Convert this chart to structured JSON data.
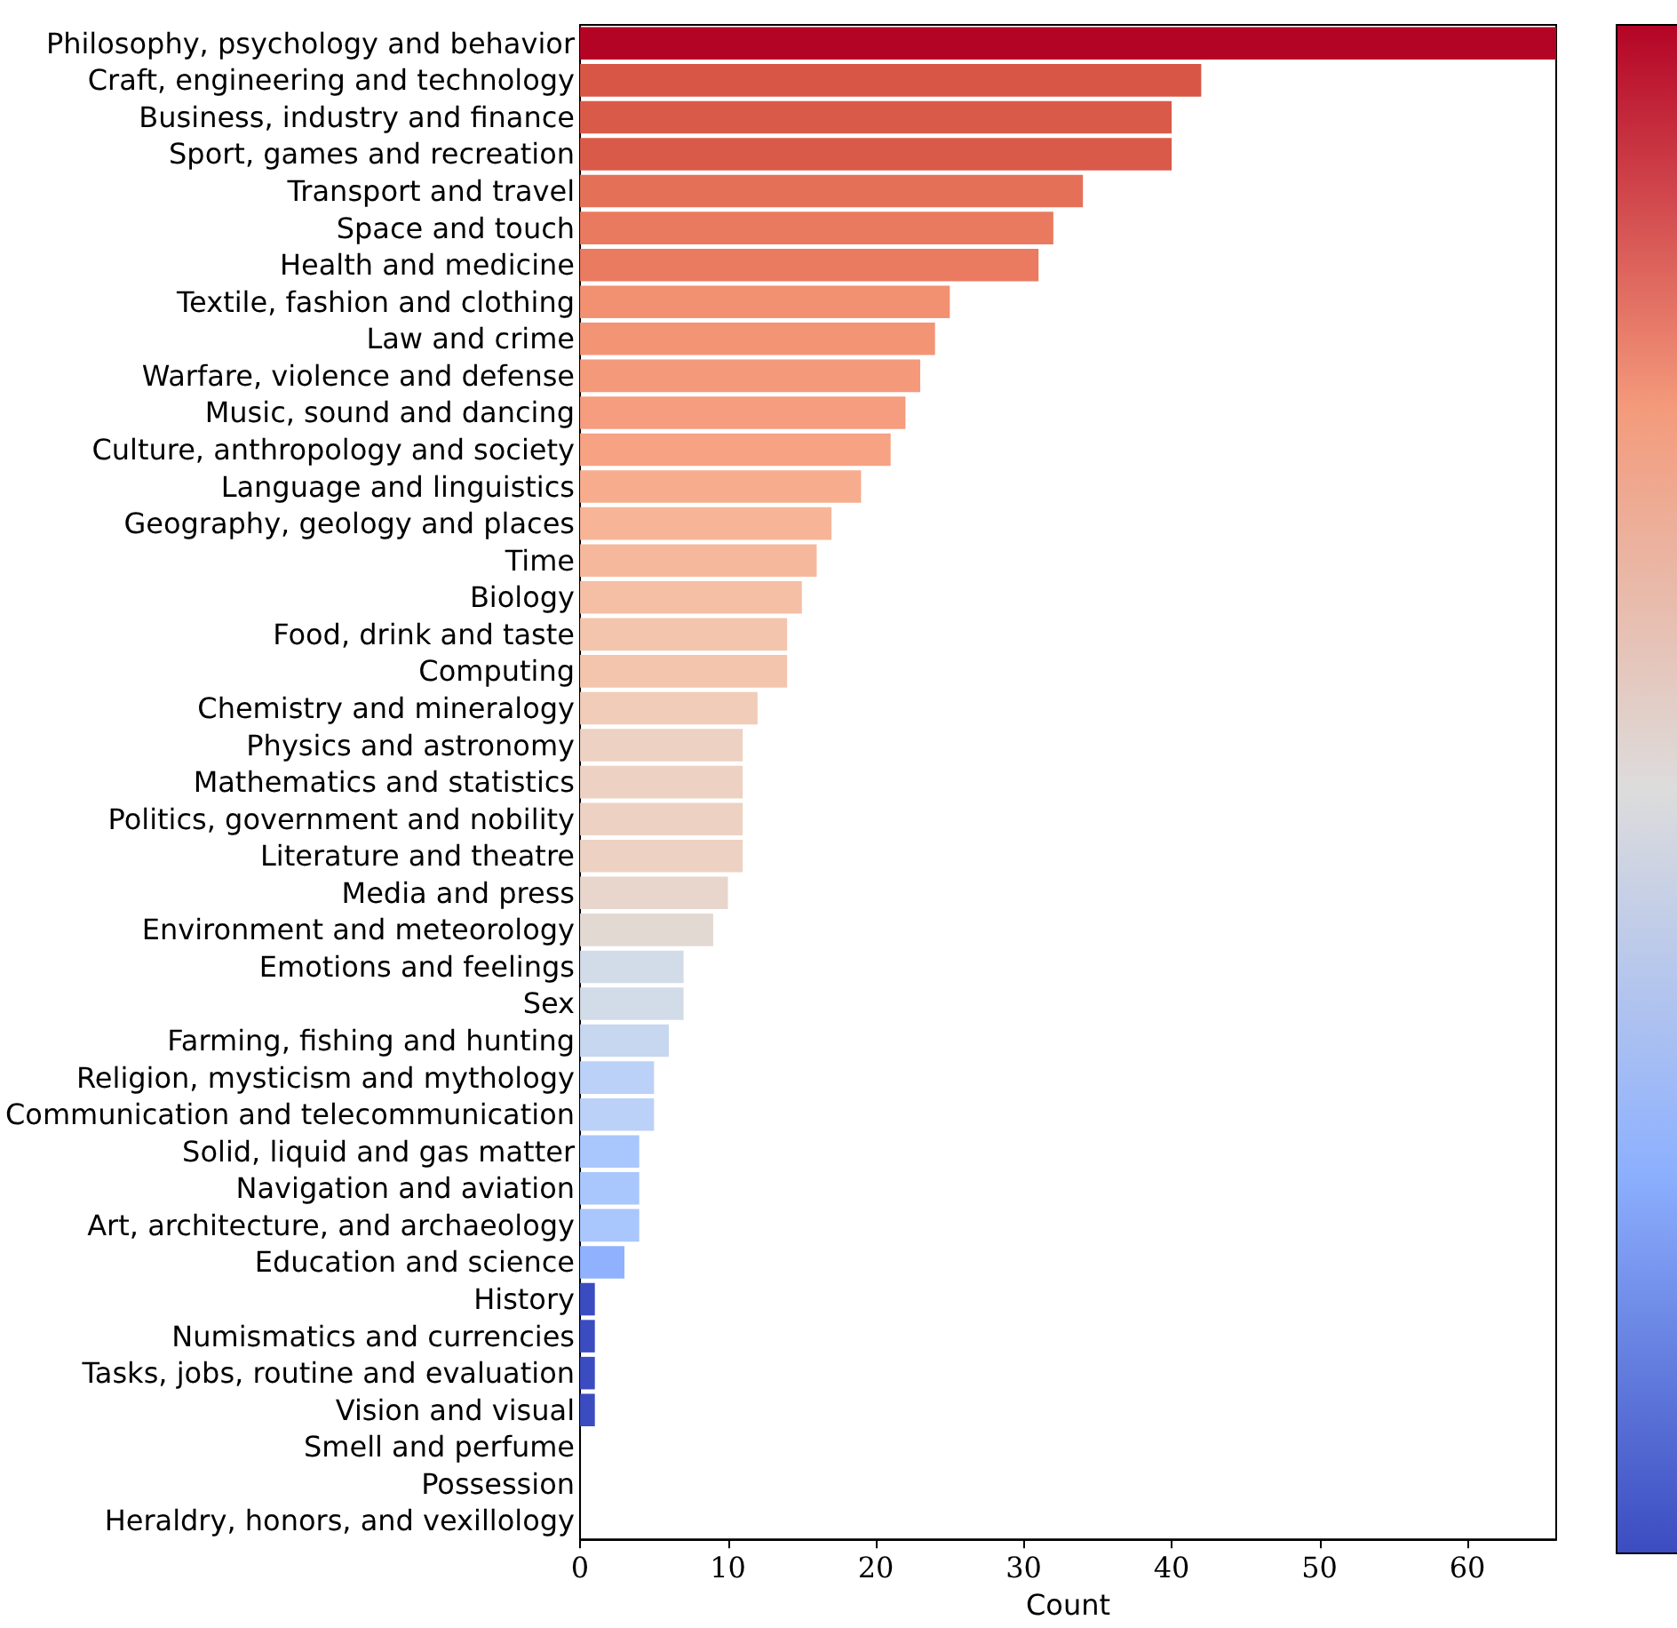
{
  "chart_data": {
    "type": "bar",
    "orientation": "horizontal",
    "xlabel": "Count",
    "categories": [
      "Philosophy, psychology and behavior",
      "Craft, engineering and technology",
      "Business, industry and finance",
      "Sport, games and recreation",
      "Transport and travel",
      "Space and touch",
      "Health and medicine",
      "Textile, fashion and clothing",
      "Law and crime",
      "Warfare, violence and defense",
      "Music, sound and dancing",
      "Culture, anthropology and society",
      "Language and linguistics",
      "Geography, geology and places",
      "Time",
      "Biology",
      "Food, drink and taste",
      "Computing",
      "Chemistry and mineralogy",
      "Physics and astronomy",
      "Mathematics and statistics",
      "Politics, government and nobility",
      "Literature and theatre",
      "Media and press",
      "Environment and meteorology",
      "Emotions and feelings",
      "Sex",
      "Farming, fishing and hunting",
      "Religion, mysticism and mythology",
      "Communication and telecommunication",
      "Solid, liquid and gas matter",
      "Navigation and aviation",
      "Art, architecture, and archaeology",
      "Education and science",
      "History",
      "Numismatics and currencies",
      "Tasks, jobs, routine and evaluation",
      "Vision and visual",
      "Smell and perfume",
      "Possession",
      "Heraldry, honors, and vexillology"
    ],
    "values": [
      66,
      42,
      40,
      40,
      34,
      32,
      31,
      25,
      24,
      23,
      22,
      21,
      19,
      17,
      16,
      15,
      14,
      14,
      12,
      11,
      11,
      11,
      11,
      10,
      9,
      7,
      7,
      6,
      5,
      5,
      4,
      4,
      4,
      3,
      1,
      1,
      1,
      1,
      0,
      0,
      0
    ],
    "colors": [
      "#b40426",
      "#d85646",
      "#da5a49",
      "#da5a49",
      "#e57058",
      "#e97a5f",
      "#ea7b60",
      "#f29072",
      "#f39475",
      "#f49a7b",
      "#f59d7e",
      "#f6a283",
      "#f7ac8e",
      "#f7b497",
      "#f6b89c",
      "#f5bfa6",
      "#f4c5ad",
      "#f4c5ad",
      "#f1ccb8",
      "#edd1c2",
      "#edd1c2",
      "#edd1c2",
      "#edd1c2",
      "#e8d6cc",
      "#e3d9d3",
      "#d2dbe8",
      "#d2dbe8",
      "#c7d7f0",
      "#bbd1f8",
      "#bbd1f8",
      "#a9c6fd",
      "#a9c6fd",
      "#a9c6fd",
      "#8fb1fe",
      "#3b4cc0",
      "#3b4cc0",
      "#3b4cc0",
      "#3b4cc0",
      "#3b4cc0",
      "#3b4cc0",
      "#3b4cc0"
    ],
    "xlim": [
      0,
      66
    ],
    "xticks": [
      0,
      10,
      20,
      30,
      40,
      50,
      60
    ],
    "grid": false
  }
}
